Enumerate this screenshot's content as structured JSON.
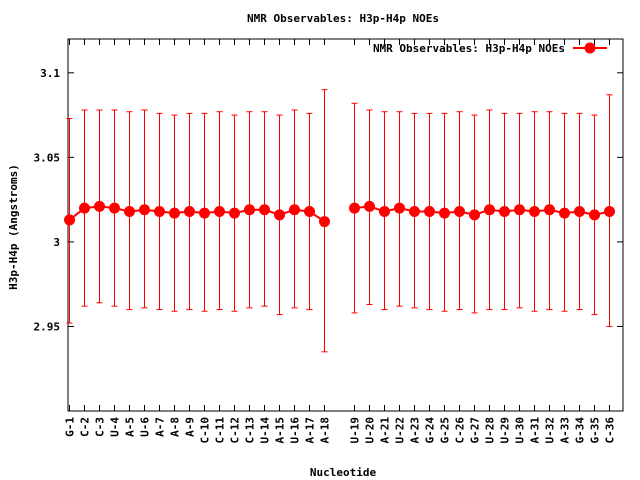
{
  "chart_data": {
    "type": "scatter",
    "title": "NMR Observables: H3p-H4p NOEs",
    "xlabel": "Nucleotide",
    "ylabel": "H3p-H4p (Angstroms)",
    "ylim": [
      2.9,
      3.12
    ],
    "yticks": [
      2.95,
      3,
      3.05,
      3.1
    ],
    "ytick_labels": [
      "2.95",
      "3",
      "3.05",
      "3.1"
    ],
    "grid": false,
    "legend_position": "top-right",
    "series": [
      {
        "name": "NMR Observables: H3p-H4p NOEs",
        "color": "#ff0000",
        "segments": [
          {
            "categories": [
              "G-1",
              "C-2",
              "C-3",
              "U-4",
              "A-5",
              "U-6",
              "A-7",
              "A-8",
              "A-9",
              "C-10",
              "C-11",
              "C-12",
              "C-13",
              "U-14",
              "A-15",
              "U-16",
              "A-17",
              "A-18"
            ],
            "values": [
              3.013,
              3.02,
              3.021,
              3.02,
              3.018,
              3.019,
              3.018,
              3.017,
              3.018,
              3.017,
              3.018,
              3.017,
              3.019,
              3.019,
              3.016,
              3.019,
              3.018,
              3.012
            ],
            "err_low": [
              2.952,
              2.962,
              2.964,
              2.962,
              2.96,
              2.961,
              2.96,
              2.959,
              2.96,
              2.959,
              2.96,
              2.959,
              2.961,
              2.962,
              2.957,
              2.961,
              2.96,
              2.935
            ],
            "err_high": [
              3.073,
              3.078,
              3.078,
              3.078,
              3.077,
              3.078,
              3.076,
              3.075,
              3.076,
              3.076,
              3.077,
              3.075,
              3.077,
              3.077,
              3.075,
              3.078,
              3.076,
              3.09
            ]
          },
          {
            "categories": [
              "U-19",
              "U-20",
              "A-21",
              "U-22",
              "A-23",
              "G-24",
              "G-25",
              "C-26",
              "G-27",
              "U-28",
              "U-29",
              "U-30",
              "A-31",
              "U-32",
              "A-33",
              "G-34",
              "G-35",
              "C-36"
            ],
            "values": [
              3.02,
              3.021,
              3.018,
              3.02,
              3.018,
              3.018,
              3.017,
              3.018,
              3.016,
              3.019,
              3.018,
              3.019,
              3.018,
              3.019,
              3.017,
              3.018,
              3.016,
              3.018
            ],
            "err_low": [
              2.958,
              2.963,
              2.96,
              2.962,
              2.961,
              2.96,
              2.959,
              2.96,
              2.958,
              2.96,
              2.96,
              2.961,
              2.959,
              2.96,
              2.959,
              2.96,
              2.957,
              2.95
            ],
            "err_high": [
              3.082,
              3.078,
              3.077,
              3.077,
              3.076,
              3.076,
              3.076,
              3.077,
              3.075,
              3.078,
              3.076,
              3.076,
              3.077,
              3.077,
              3.076,
              3.076,
              3.075,
              3.087
            ]
          }
        ]
      }
    ]
  }
}
